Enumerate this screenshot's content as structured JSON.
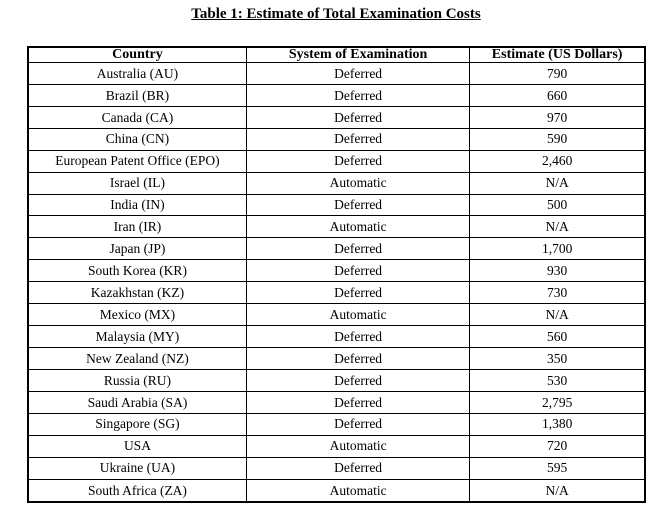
{
  "page": {
    "title": "Table 1: Estimate of Total Examination Costs"
  },
  "table": {
    "columns": [
      "Country",
      "System of Examination",
      "Estimate (US Dollars)"
    ],
    "rows": [
      {
        "country": "Australia (AU)",
        "system": "Deferred",
        "estimate": "790"
      },
      {
        "country": "Brazil (BR)",
        "system": "Deferred",
        "estimate": "660"
      },
      {
        "country": "Canada (CA)",
        "system": "Deferred",
        "estimate": "970"
      },
      {
        "country": "China (CN)",
        "system": "Deferred",
        "estimate": "590"
      },
      {
        "country": "European Patent Office (EPO)",
        "system": "Deferred",
        "estimate": "2,460"
      },
      {
        "country": "Israel (IL)",
        "system": "Automatic",
        "estimate": "N/A"
      },
      {
        "country": "India (IN)",
        "system": "Deferred",
        "estimate": "500"
      },
      {
        "country": "Iran (IR)",
        "system": "Automatic",
        "estimate": "N/A"
      },
      {
        "country": "Japan (JP)",
        "system": "Deferred",
        "estimate": "1,700"
      },
      {
        "country": "South Korea (KR)",
        "system": "Deferred",
        "estimate": "930"
      },
      {
        "country": "Kazakhstan (KZ)",
        "system": "Deferred",
        "estimate": "730"
      },
      {
        "country": "Mexico (MX)",
        "system": "Automatic",
        "estimate": "N/A"
      },
      {
        "country": "Malaysia (MY)",
        "system": "Deferred",
        "estimate": "560"
      },
      {
        "country": "New Zealand (NZ)",
        "system": "Deferred",
        "estimate": "350"
      },
      {
        "country": "Russia (RU)",
        "system": "Deferred",
        "estimate": "530"
      },
      {
        "country": "Saudi Arabia (SA)",
        "system": "Deferred",
        "estimate": "2,795"
      },
      {
        "country": "Singapore (SG)",
        "system": "Deferred",
        "estimate": "1,380"
      },
      {
        "country": "USA",
        "system": "Automatic",
        "estimate": "720"
      },
      {
        "country": "Ukraine (UA)",
        "system": "Deferred",
        "estimate": "595"
      },
      {
        "country": "South Africa (ZA)",
        "system": "Automatic",
        "estimate": "N/A"
      }
    ]
  },
  "colors": {
    "text": "#000000",
    "background": "#ffffff",
    "border": "#000000"
  }
}
